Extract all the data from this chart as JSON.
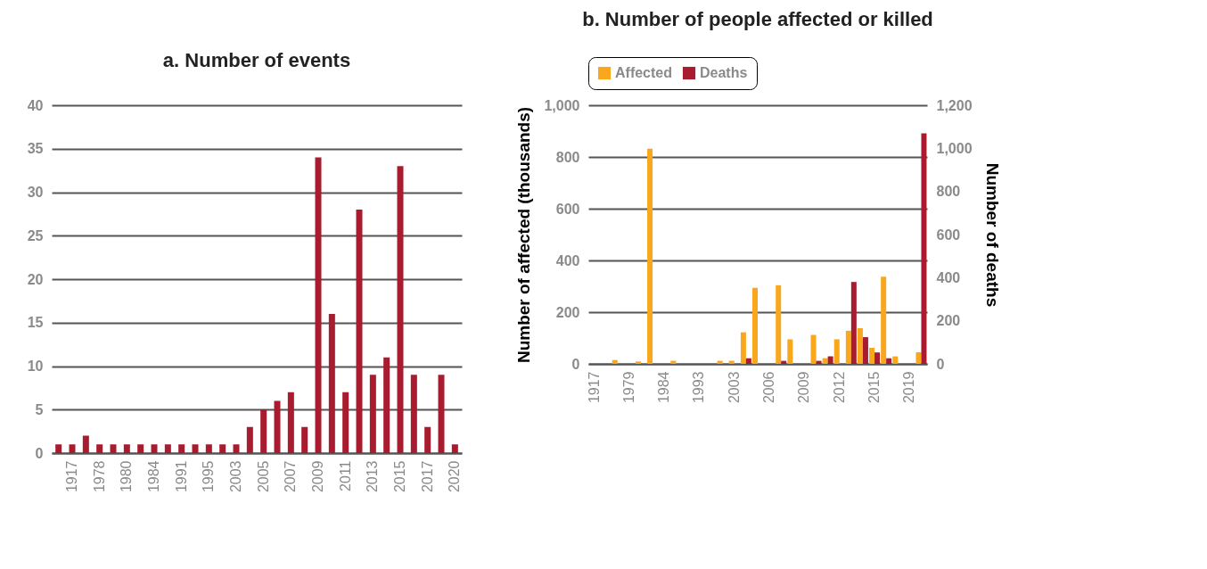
{
  "chart_data": [
    {
      "type": "bar",
      "title": "a. Number of events",
      "categories": [
        null,
        "1917",
        null,
        "1978",
        null,
        "1980",
        null,
        "1984",
        null,
        "1991",
        null,
        "1995",
        null,
        "2003",
        null,
        "2005",
        null,
        "2007",
        null,
        "2009",
        null,
        "2011",
        null,
        "2013",
        null,
        "2015",
        null,
        "2017",
        null,
        "2020"
      ],
      "values": [
        1,
        1,
        2,
        1,
        1,
        1,
        1,
        1,
        1,
        1,
        1,
        1,
        1,
        1,
        3,
        5,
        6,
        7,
        3,
        34,
        16,
        7,
        28,
        9,
        11,
        33,
        9,
        3,
        9,
        1
      ],
      "color": "#a91b2f",
      "ylim": [
        0,
        40
      ],
      "yticks": [
        0,
        5,
        10,
        15,
        20,
        25,
        30,
        35,
        40
      ],
      "grid": "y"
    },
    {
      "type": "bar",
      "title": "b. Number of people affected or killed",
      "ylabel": "Number of affected (thousands)",
      "y2label": "Number of deaths",
      "categories": [
        "1917",
        null,
        null,
        "1979",
        null,
        null,
        "1984",
        null,
        null,
        "1993",
        null,
        null,
        "2003",
        null,
        null,
        "2006",
        null,
        null,
        "2009",
        null,
        null,
        "2012",
        null,
        null,
        "2015",
        null,
        null,
        "2019",
        null
      ],
      "series": [
        {
          "name": "Affected",
          "color": "#f9a71c",
          "axis": "y",
          "values": [
            null,
            null,
            15,
            null,
            9,
            832,
            null,
            12,
            null,
            null,
            null,
            12,
            12,
            122,
            294,
            null,
            304,
            95,
            null,
            112,
            22,
            95,
            128,
            138,
            62,
            337,
            29,
            null,
            45
          ]
        },
        {
          "name": "Deaths",
          "color": "#a91b2f",
          "axis": "y2",
          "values": [
            null,
            null,
            null,
            null,
            null,
            null,
            null,
            null,
            null,
            null,
            null,
            null,
            null,
            26,
            null,
            null,
            14,
            null,
            null,
            14,
            35,
            null,
            380,
            124,
            53,
            26,
            null,
            null,
            1070
          ]
        }
      ],
      "ylim": [
        0,
        1000
      ],
      "yticks": [
        0,
        200,
        400,
        600,
        800,
        {
          "value": 1000,
          "label": "1,000"
        }
      ],
      "y2lim": [
        0,
        1200
      ],
      "y2ticks": [
        0,
        200,
        400,
        600,
        800,
        {
          "value": 1000,
          "label": "1,000"
        },
        {
          "value": 1200,
          "label": "1,200"
        }
      ],
      "grid": "y",
      "legend": "top"
    }
  ]
}
